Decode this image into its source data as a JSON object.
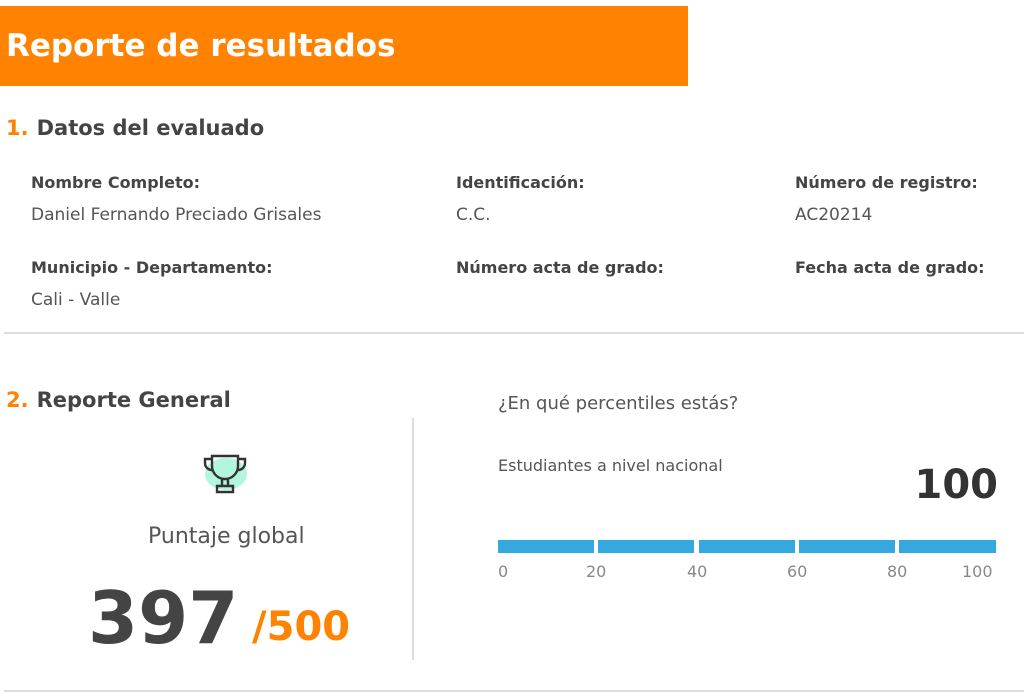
{
  "header": {
    "title": "Reporte de resultados"
  },
  "section1": {
    "number": "1.",
    "title": "Datos del evaluado",
    "fields": [
      {
        "label": "Nombre Completo:",
        "value": "Daniel Fernando Preciado Grisales"
      },
      {
        "label": "Identificación:",
        "value": "C.C."
      },
      {
        "label": "Número de registro:",
        "value": "AC20214"
      },
      {
        "label": "Municipio - Departamento:",
        "value": "Cali -  Valle"
      },
      {
        "label": "Número acta de grado:",
        "value": ""
      },
      {
        "label": "Fecha acta de grado:",
        "value": ""
      }
    ]
  },
  "section2": {
    "number": "2.",
    "title": "Reporte General",
    "icon": "trophy-icon",
    "score_label": "Puntaje global",
    "score": "397",
    "max": "/500",
    "percentile": {
      "question": "¿En qué percentiles estás?",
      "label": "Estudiantes a nivel nacional",
      "value": "100",
      "bar_color": "#35a8e0",
      "ticks": [
        "0",
        "20",
        "40",
        "60",
        "80",
        "100"
      ]
    }
  },
  "colors": {
    "accent": "#ff8200"
  }
}
